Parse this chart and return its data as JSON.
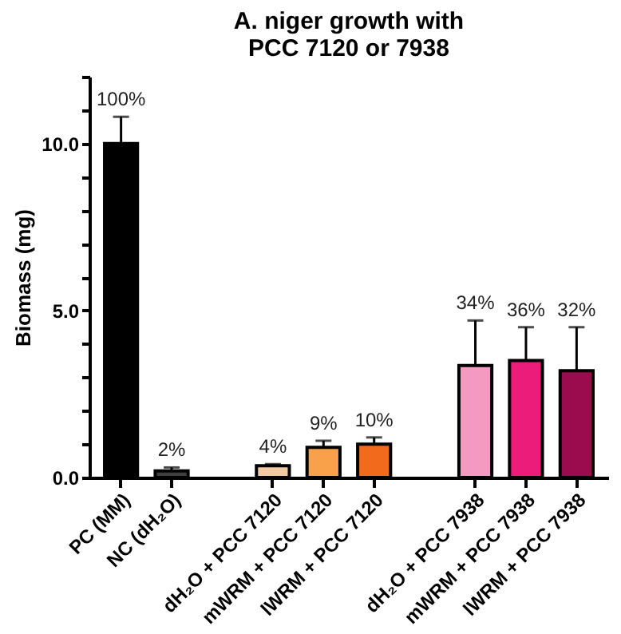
{
  "chart_data": {
    "type": "bar",
    "title": "A. niger growth with\nPCC 7120 or 7938",
    "ylabel": "Biomass (mg)",
    "categories": [
      "PC (MM)",
      "NC (dH₂O)",
      null,
      "dH₂O + PCC 7120",
      "mWRM + PCC 7120",
      "lWRM + PCC 7120",
      null,
      "dH₂O + PCC 7938",
      "mWRM + PCC 7938",
      "lWRM + PCC 7938"
    ],
    "values": [
      10.0,
      0.2,
      null,
      0.35,
      0.9,
      1.0,
      null,
      3.35,
      3.5,
      3.2
    ],
    "errors": [
      0.8,
      0.1,
      null,
      0.05,
      0.2,
      0.2,
      null,
      1.35,
      1.0,
      1.3
    ],
    "colors": [
      "#000000",
      "#404040",
      null,
      "#f2c9a0",
      "#f9a04a",
      "#f26b1d",
      null,
      "#f49ac1",
      "#ec1c7b",
      "#9b0c4f"
    ],
    "annotations": [
      {
        "text": "100%",
        "x": "PC (MM)",
        "y": 10.8
      },
      {
        "text": "2%",
        "x": "NC (dH₂O)",
        "y": 0.3
      },
      {
        "text": "4%",
        "x": "dH₂O + PCC 7120",
        "y": 0.4
      },
      {
        "text": "9%",
        "x": "mWRM + PCC 7120",
        "y": 1.1
      },
      {
        "text": "10%",
        "x": "lWRM + PCC 7120",
        "y": 1.2
      },
      {
        "text": "34%",
        "x": "dH₂O + PCC 7938",
        "y": 4.7
      },
      {
        "text": "36%",
        "x": "mWRM + PCC 7938",
        "y": 4.5
      },
      {
        "text": "32%",
        "x": "lWRM + PCC 7938",
        "y": 4.5
      }
    ],
    "ylim": [
      0,
      12
    ],
    "yticks": [
      {
        "value": 0,
        "label": "0.0"
      },
      {
        "value": 1,
        "label": null
      },
      {
        "value": 2,
        "label": null
      },
      {
        "value": 3,
        "label": null
      },
      {
        "value": 4,
        "label": null
      },
      {
        "value": 5,
        "label": "5.0"
      },
      {
        "value": 6,
        "label": null
      },
      {
        "value": 7,
        "label": null
      },
      {
        "value": 8,
        "label": null
      },
      {
        "value": 9,
        "label": null
      },
      {
        "value": 10,
        "label": "10.0"
      },
      {
        "value": 11,
        "label": null
      },
      {
        "value": 12,
        "label": null
      }
    ],
    "grid": false
  }
}
